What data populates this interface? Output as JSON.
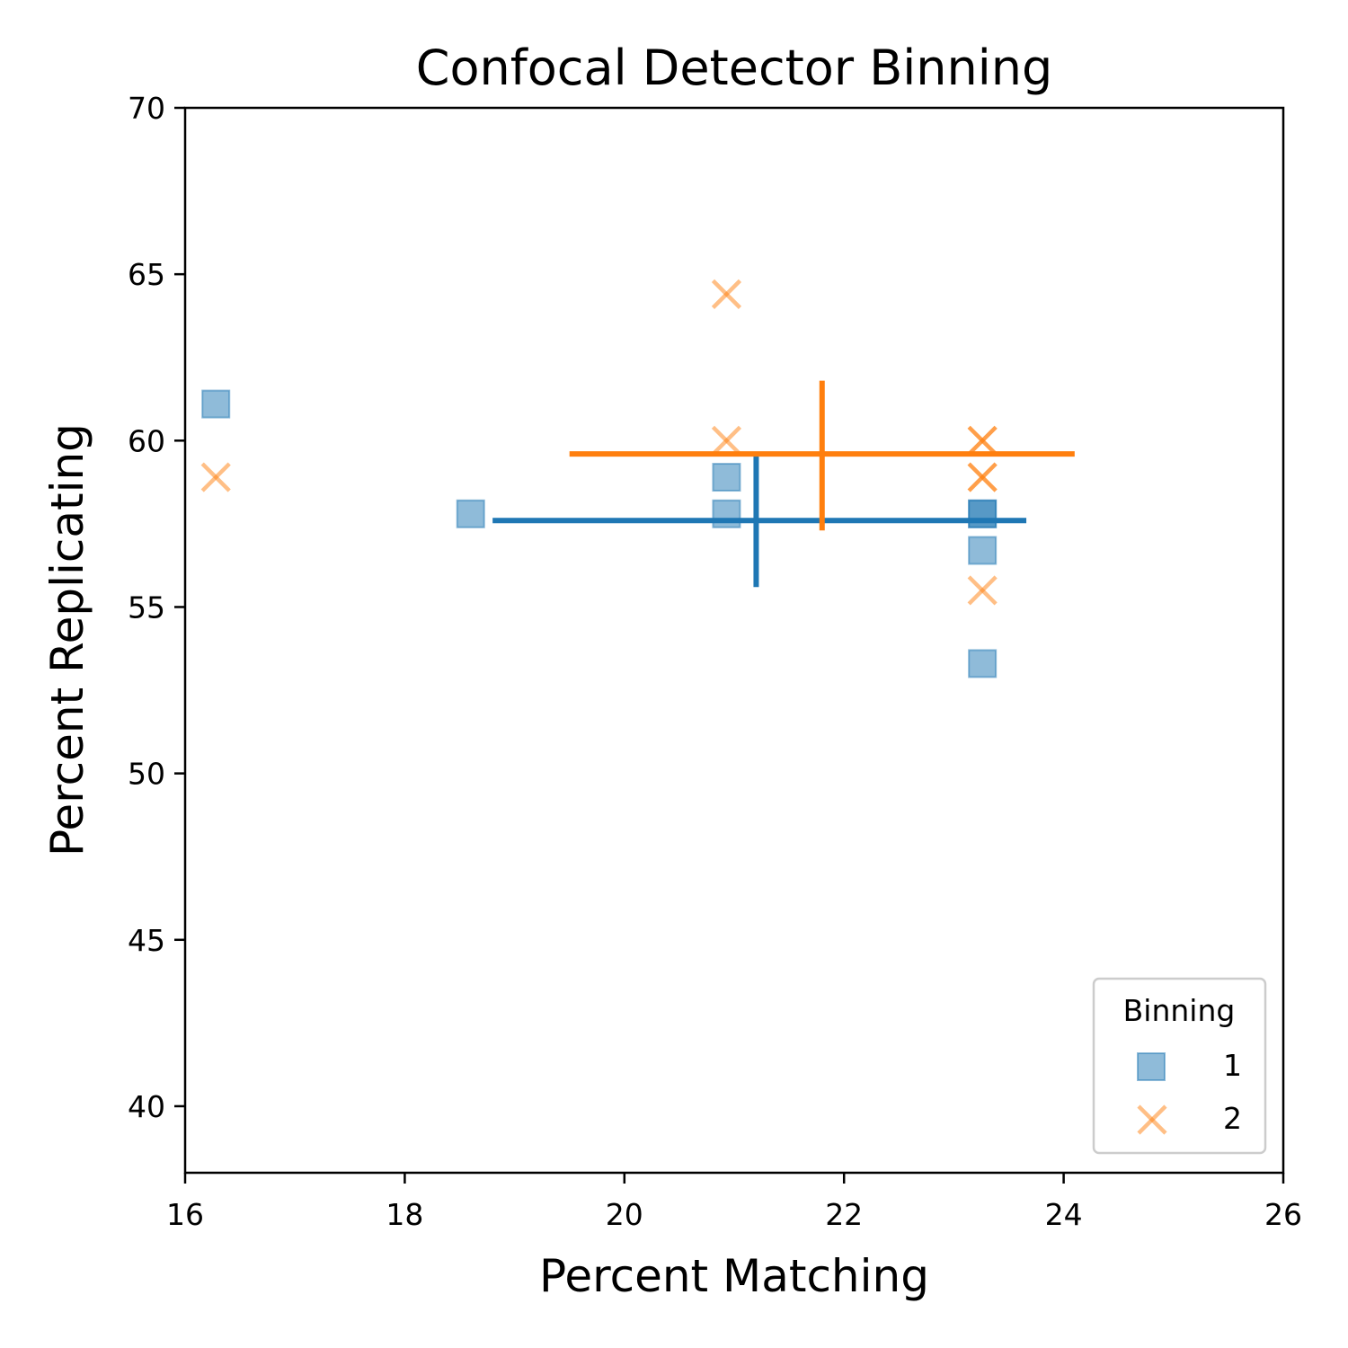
{
  "chart_data": {
    "type": "scatter",
    "title": "Confocal Detector Binning",
    "xlabel": "Percent Matching",
    "ylabel": "Percent Replicating",
    "xlim": [
      16,
      26
    ],
    "ylim": [
      38,
      70
    ],
    "xticks": [
      "16",
      "18",
      "20",
      "22",
      "24",
      "26"
    ],
    "yticks": [
      "40",
      "45",
      "50",
      "55",
      "60",
      "65",
      "70"
    ],
    "grid": false,
    "legend": {
      "title": "Binning",
      "placement": "lower-right"
    },
    "series": [
      {
        "name": "1",
        "marker": "square",
        "color": "#1f77b4",
        "points": [
          {
            "x": 16.28,
            "y": 61.1
          },
          {
            "x": 18.6,
            "y": 57.8
          },
          {
            "x": 20.93,
            "y": 58.9
          },
          {
            "x": 20.93,
            "y": 57.8
          },
          {
            "x": 23.26,
            "y": 57.8
          },
          {
            "x": 23.26,
            "y": 57.8
          },
          {
            "x": 23.26,
            "y": 56.7
          },
          {
            "x": 23.26,
            "y": 53.3
          }
        ],
        "mean_cross": {
          "x": 21.2,
          "y": 57.6,
          "x_range": [
            18.8,
            23.66
          ],
          "y_range": [
            55.6,
            59.6
          ]
        }
      },
      {
        "name": "2",
        "marker": "x",
        "color": "#ff7f0e",
        "points": [
          {
            "x": 16.28,
            "y": 58.9
          },
          {
            "x": 20.93,
            "y": 64.4
          },
          {
            "x": 20.93,
            "y": 60.0
          },
          {
            "x": 23.26,
            "y": 60.0
          },
          {
            "x": 23.26,
            "y": 60.0
          },
          {
            "x": 23.26,
            "y": 58.9
          },
          {
            "x": 23.26,
            "y": 58.9
          },
          {
            "x": 23.26,
            "y": 55.5
          }
        ],
        "mean_cross": {
          "x": 21.8,
          "y": 59.6,
          "x_range": [
            19.5,
            24.1
          ],
          "y_range": [
            57.3,
            61.8
          ]
        }
      }
    ]
  }
}
